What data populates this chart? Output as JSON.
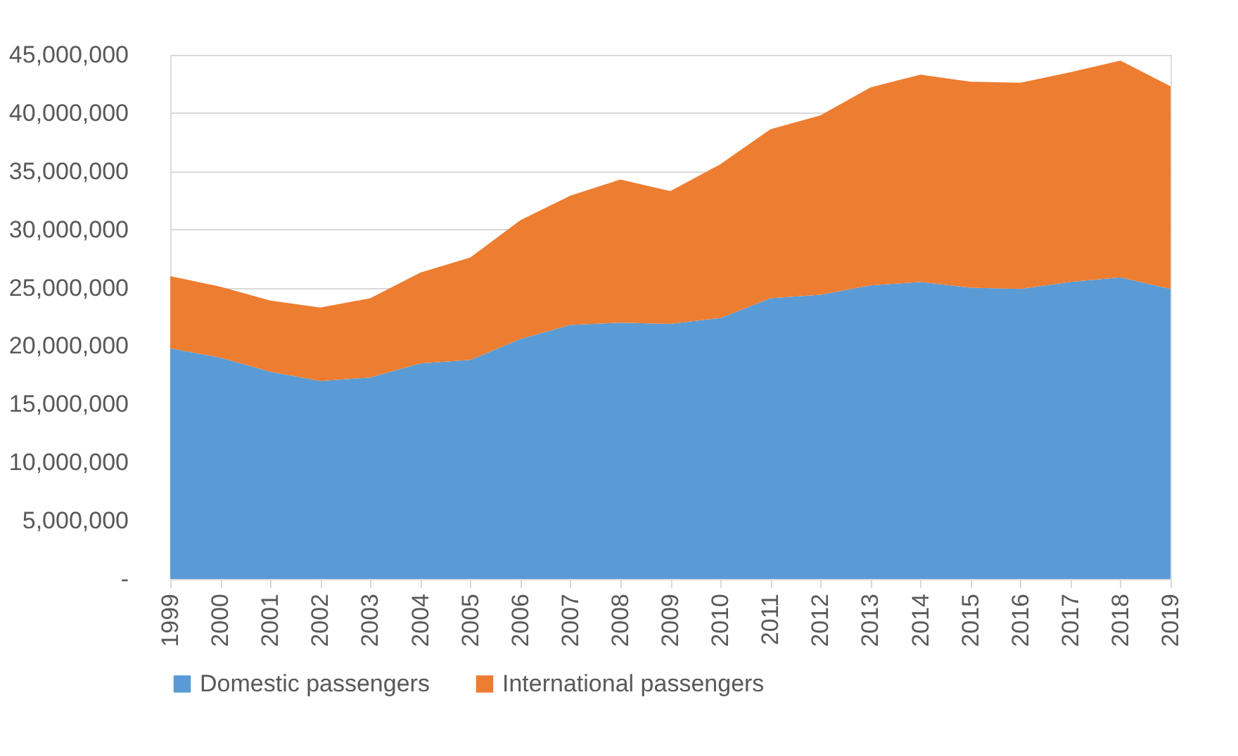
{
  "chart_data": {
    "type": "area",
    "stacked": true,
    "categories": [
      "1999",
      "2000",
      "2001",
      "2002",
      "2003",
      "2004",
      "2005",
      "2006",
      "2007",
      "2008",
      "2009",
      "2010",
      "2011",
      "2012",
      "2013",
      "2014",
      "2015",
      "2016",
      "2017",
      "2018",
      "2019"
    ],
    "series": [
      {
        "name": "Domestic passengers",
        "color": "#5b9bd5",
        "values": [
          19800000,
          19000000,
          17800000,
          17000000,
          17300000,
          18500000,
          18800000,
          20600000,
          21800000,
          22000000,
          21900000,
          22400000,
          24100000,
          24400000,
          25200000,
          25500000,
          25000000,
          24900000,
          25500000,
          25900000,
          24900000
        ]
      },
      {
        "name": "International passengers",
        "color": "#ed7d31",
        "values": [
          6200000,
          6100000,
          6100000,
          6300000,
          6800000,
          7800000,
          8800000,
          10200000,
          11100000,
          12300000,
          11400000,
          13200000,
          14500000,
          15400000,
          17000000,
          17800000,
          17700000,
          17700000,
          18000000,
          18600000,
          17400000
        ]
      }
    ],
    "ylim": [
      0,
      45000000
    ],
    "yticks": [
      {
        "value": 0,
        "label": "-"
      },
      {
        "value": 5000000,
        "label": "5,000,000"
      },
      {
        "value": 10000000,
        "label": "10,000,000"
      },
      {
        "value": 15000000,
        "label": "15,000,000"
      },
      {
        "value": 20000000,
        "label": "20,000,000"
      },
      {
        "value": 25000000,
        "label": "25,000,000"
      },
      {
        "value": 30000000,
        "label": "30,000,000"
      },
      {
        "value": 35000000,
        "label": "35,000,000"
      },
      {
        "value": 40000000,
        "label": "40,000,000"
      },
      {
        "value": 45000000,
        "label": "45,000,000"
      }
    ],
    "grid": "y",
    "legend": "bottom"
  }
}
